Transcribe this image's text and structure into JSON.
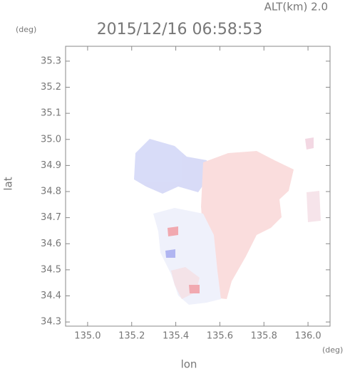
{
  "chart_data": {
    "type": "map",
    "title": "2015/12/16 06:58:53",
    "annotation": "ALT(km) 2.0",
    "xlabel": "lon",
    "ylabel": "lat",
    "xunit": "(deg)",
    "yunit": "(deg)",
    "xlim": [
      134.9,
      136.1
    ],
    "ylim": [
      34.284,
      35.357
    ],
    "xticks": [
      {
        "value": 135,
        "label": "135.0"
      },
      135.2,
      135.4,
      135.6,
      135.8,
      {
        "value": 136,
        "label": "136.0"
      }
    ],
    "yticks": [
      34.3,
      34.4,
      34.5,
      34.6,
      34.7,
      34.8,
      34.9,
      {
        "value": 35,
        "label": "35.0"
      },
      35.1,
      35.2,
      35.3
    ]
  }
}
